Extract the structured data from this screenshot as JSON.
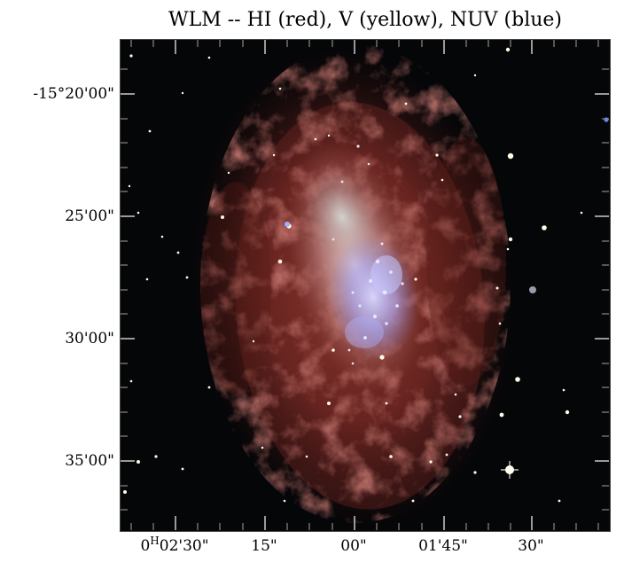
{
  "title": "WLM -- HI (red), V (yellow), NUV (blue)",
  "axes": {
    "y_ticks": [
      "-15°20'00\"",
      "25'00\"",
      "30'00\"",
      "35'00\""
    ],
    "x_ticks": [
      {
        "prefix": "0",
        "sup": "H",
        "suffix": "02'30\""
      },
      {
        "prefix": "",
        "sup": "",
        "suffix": "15\""
      },
      {
        "prefix": "",
        "sup": "",
        "suffix": "00\""
      },
      {
        "prefix": "",
        "sup": "",
        "suffix": "01'45\""
      },
      {
        "prefix": "",
        "sup": "",
        "suffix": "30\""
      }
    ]
  },
  "colors": {
    "background": "#050608",
    "hi_gas": "#8a2e28",
    "stellar_body": "#d8b0b0",
    "star_forming": "#8c8cf0",
    "axis": "#9a9a9a"
  }
}
